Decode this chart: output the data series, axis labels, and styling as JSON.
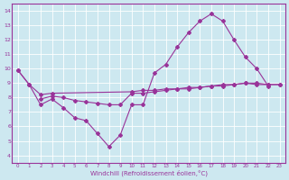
{
  "xlabel": "Windchill (Refroidissement éolien,°C)",
  "bg_color": "#cde8f0",
  "line_color": "#993399",
  "xlim": [
    -0.5,
    23.5
  ],
  "ylim": [
    3.5,
    14.5
  ],
  "xticks": [
    0,
    1,
    2,
    3,
    4,
    5,
    6,
    7,
    8,
    9,
    10,
    11,
    12,
    13,
    14,
    15,
    16,
    17,
    18,
    19,
    20,
    21,
    22,
    23
  ],
  "yticks": [
    4,
    5,
    6,
    7,
    8,
    9,
    10,
    11,
    12,
    13,
    14
  ],
  "line1_x": [
    0,
    1,
    2,
    3,
    4,
    5,
    6,
    7,
    8,
    9,
    10,
    11,
    12,
    13,
    14,
    15,
    16,
    17,
    18,
    19,
    20,
    21,
    22
  ],
  "line1_y": [
    9.9,
    8.9,
    7.5,
    7.9,
    7.3,
    6.6,
    6.4,
    5.5,
    4.6,
    5.4,
    7.5,
    7.5,
    9.7,
    10.3,
    11.5,
    12.5,
    13.3,
    13.8,
    13.3,
    12.0,
    10.8,
    10.0,
    8.8
  ],
  "line2_x": [
    0,
    1,
    2,
    3,
    10,
    11,
    12,
    13,
    14,
    15,
    16,
    17,
    18,
    19,
    20,
    21,
    22,
    23
  ],
  "line2_y": [
    9.9,
    8.9,
    8.2,
    8.3,
    8.4,
    8.5,
    8.5,
    8.6,
    8.6,
    8.7,
    8.7,
    8.8,
    8.8,
    8.9,
    9.0,
    9.0,
    8.9,
    8.9
  ],
  "line3_x": [
    2,
    3,
    4,
    5,
    6,
    7,
    8,
    9,
    10,
    11,
    12,
    13,
    14,
    15,
    16,
    17,
    18,
    19,
    20,
    21,
    22,
    23
  ],
  "line3_y": [
    7.9,
    8.1,
    8.0,
    7.8,
    7.7,
    7.6,
    7.5,
    7.5,
    8.3,
    8.3,
    8.4,
    8.5,
    8.6,
    8.6,
    8.7,
    8.8,
    8.9,
    8.9,
    9.0,
    8.9,
    8.9,
    8.9
  ]
}
